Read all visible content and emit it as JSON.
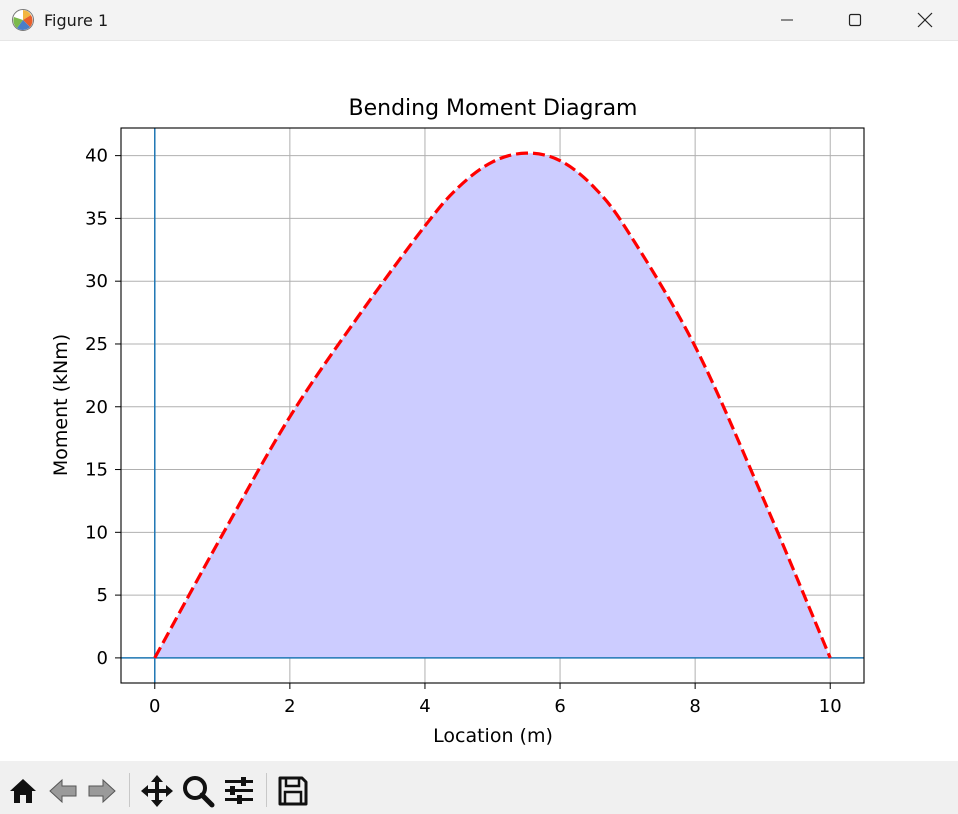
{
  "window": {
    "title": "Figure 1",
    "icons": {
      "app": "matplotlib-figure-icon",
      "minimize": "minimize-icon",
      "maximize": "maximize-icon",
      "close": "close-icon"
    }
  },
  "toolbar": {
    "buttons": [
      "home-icon",
      "back-arrow-icon",
      "forward-arrow-icon",
      "pan-icon",
      "zoom-icon",
      "configure-subplots-icon",
      "save-icon"
    ]
  },
  "chart_data": {
    "type": "area",
    "title": "Bending Moment Diagram",
    "xlabel": "Location (m)",
    "ylabel": "Moment (kNm)",
    "xlim": [
      -0.5,
      10.5
    ],
    "ylim": [
      -2,
      42.2
    ],
    "xticks": [
      0,
      2,
      4,
      6,
      8,
      10
    ],
    "yticks": [
      0,
      5,
      10,
      15,
      20,
      25,
      30,
      35,
      40
    ],
    "grid": true,
    "reference_lines": {
      "x": 0,
      "y": 0
    },
    "line_color": "#ff0000",
    "line_style": "dashed",
    "fill_color": "#ccccff",
    "axis_line_color": "#1f77b4",
    "x": [
      0,
      1,
      2,
      3,
      4,
      4.5,
      5,
      5.5,
      6,
      6.5,
      7,
      8,
      9,
      10
    ],
    "values": [
      0,
      9.8,
      19.2,
      27.1,
      34.4,
      37.5,
      39.5,
      40.2,
      39.6,
      37.5,
      34.0,
      24.8,
      12.8,
      0
    ]
  }
}
